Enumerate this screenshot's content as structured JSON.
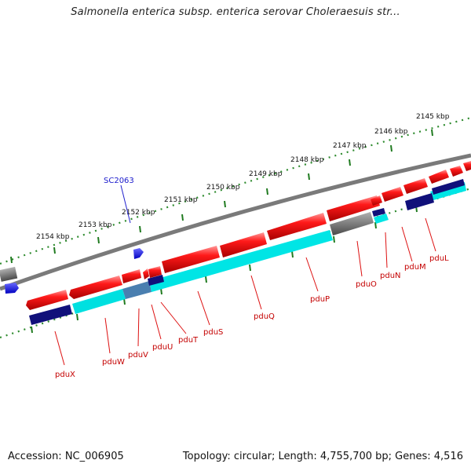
{
  "title": "Salmonella enterica subsp. enterica serovar Choleraesuis str...",
  "accession": "Accession: NC_006905",
  "summary": "Topology: circular; Length: 4,755,700 bp; Genes: 4,516",
  "colors": {
    "backbone": "#808080",
    "forward_cds": "#ff2020",
    "pseudo": "#6e6e6e",
    "cyan_track": "#00e5e5",
    "navy_track": "#10107a",
    "ticks": "#2e8b2e",
    "gene_label": "#cc0000",
    "feature_label": "#2020cc"
  },
  "scale_ticks": [
    {
      "label": "2154 kbp"
    },
    {
      "label": "2153 kbp"
    },
    {
      "label": "2152 kbp"
    },
    {
      "label": "2151 kbp"
    },
    {
      "label": "2150 kbp"
    },
    {
      "label": "2149 kbp"
    },
    {
      "label": "2148 kbp"
    },
    {
      "label": "2147 kbp"
    },
    {
      "label": "2146 kbp"
    },
    {
      "label": "2145 kbp"
    }
  ],
  "feature_label": "SC2063",
  "gene_labels": [
    "pduX",
    "pduW",
    "pduV",
    "pduU",
    "pduT",
    "pduS",
    "pduQ",
    "pduP",
    "pduO",
    "pduN",
    "pduM",
    "pduL"
  ]
}
